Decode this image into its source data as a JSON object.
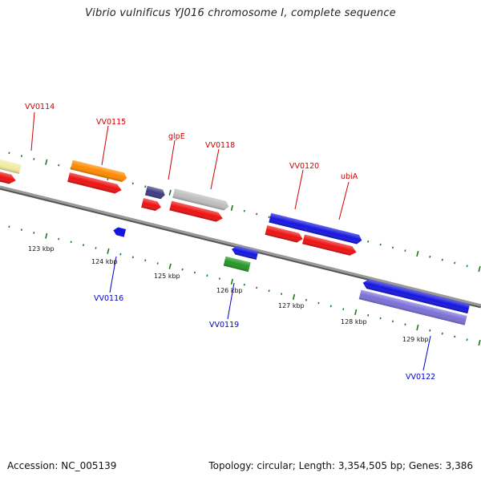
{
  "header": {
    "title": "Vibrio vulnificus YJ016 chromosome I, complete sequence"
  },
  "footer": {
    "accession": "Accession: NC_005139",
    "stats": "Topology: circular; Length: 3,354,505 bp; Genes: 3,386"
  },
  "colors": {
    "forward_label": "#d00000",
    "reverse_label": "#0000cc",
    "backbone": "#808080",
    "tick": "#1a7a1a",
    "cds": "#ee1111",
    "gene_yellow": "#f3eaa0",
    "gene_orange": "#ff8a00",
    "gene_purple": "#3d3a82",
    "gene_grey": "#bdbdbd",
    "gene_blue": "#1515e0",
    "gene_green": "#249624",
    "gene_lavender": "#7a70d8"
  },
  "scale": {
    "tick_labels": [
      "123 kbp",
      "124 kbp",
      "125 kbp",
      "126 kbp",
      "127 kbp",
      "128 kbp",
      "129 kbp"
    ]
  },
  "genes": {
    "forward": [
      "VV0114",
      "VV0115",
      "glpE",
      "VV0118",
      "VV0120",
      "ubiA"
    ],
    "reverse": [
      "VV0116",
      "VV0119",
      "VV0122"
    ]
  }
}
